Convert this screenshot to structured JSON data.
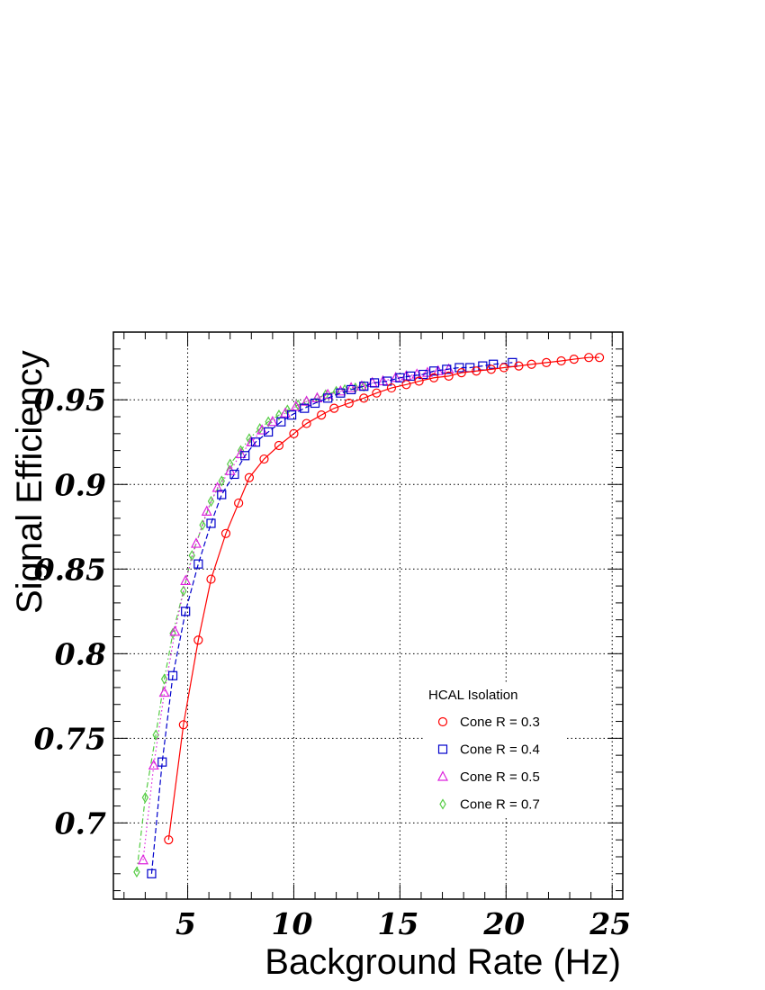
{
  "chart_data": {
    "type": "line",
    "xlabel": "Background Rate (Hz)",
    "ylabel": "Signal Efficiency",
    "xlim": [
      1.5,
      25.5
    ],
    "ylim": [
      0.655,
      0.99
    ],
    "xticks": [
      5,
      10,
      15,
      20,
      25
    ],
    "xtick_labels": [
      "5",
      "10",
      "15",
      "20",
      "25"
    ],
    "yticks": [
      0.7,
      0.75,
      0.8,
      0.85,
      0.9,
      0.95
    ],
    "ytick_labels": [
      "0.7",
      "0.75",
      "0.8",
      "0.85",
      "0.9",
      "0.95"
    ],
    "grid": true,
    "legend_title": "HCAL Isolation",
    "legend_position": "lower-right",
    "series": [
      {
        "name": "Cone R = 0.3",
        "color": "#ff0000",
        "marker": "circle",
        "line": "solid",
        "x": [
          4.1,
          4.8,
          5.5,
          6.1,
          6.8,
          7.4,
          7.9,
          8.6,
          9.3,
          10.0,
          10.6,
          11.3,
          11.9,
          12.6,
          13.3,
          13.9,
          14.6,
          15.3,
          15.9,
          16.6,
          17.3,
          17.9,
          18.6,
          19.3,
          19.9,
          20.6,
          21.2,
          21.9,
          22.6,
          23.2,
          23.9,
          24.4
        ],
        "y": [
          0.69,
          0.758,
          0.808,
          0.844,
          0.871,
          0.889,
          0.904,
          0.915,
          0.923,
          0.93,
          0.936,
          0.941,
          0.945,
          0.948,
          0.951,
          0.954,
          0.957,
          0.959,
          0.961,
          0.963,
          0.964,
          0.966,
          0.967,
          0.968,
          0.969,
          0.97,
          0.971,
          0.972,
          0.973,
          0.974,
          0.975,
          0.975
        ]
      },
      {
        "name": "Cone R = 0.4",
        "color": "#0000cc",
        "marker": "square",
        "line": "dashed",
        "x": [
          3.3,
          3.8,
          4.3,
          4.9,
          5.5,
          6.1,
          6.6,
          7.2,
          7.7,
          8.2,
          8.8,
          9.4,
          9.9,
          10.5,
          11.0,
          11.6,
          12.2,
          12.7,
          13.3,
          13.8,
          14.4,
          15.0,
          15.5,
          16.1,
          16.6,
          17.2,
          17.8,
          18.3,
          18.9,
          19.4,
          20.3
        ],
        "y": [
          0.67,
          0.736,
          0.787,
          0.825,
          0.853,
          0.877,
          0.894,
          0.906,
          0.917,
          0.925,
          0.931,
          0.937,
          0.941,
          0.945,
          0.948,
          0.951,
          0.954,
          0.956,
          0.958,
          0.96,
          0.961,
          0.963,
          0.964,
          0.965,
          0.967,
          0.968,
          0.969,
          0.969,
          0.97,
          0.971,
          0.972
        ]
      },
      {
        "name": "Cone R = 0.5",
        "color": "#dd22dd",
        "marker": "triangle",
        "line": "dotted",
        "x": [
          2.9,
          3.4,
          3.9,
          4.4,
          4.9,
          5.4,
          5.9,
          6.4,
          7.0,
          7.5,
          8.0,
          8.5,
          9.0,
          9.6,
          10.1,
          10.6,
          11.1,
          11.6,
          12.2,
          12.7,
          13.2,
          13.7,
          14.2,
          14.8,
          15.3,
          15.8,
          16.3,
          16.8,
          17.3
        ],
        "y": [
          0.678,
          0.734,
          0.777,
          0.813,
          0.843,
          0.865,
          0.884,
          0.898,
          0.908,
          0.918,
          0.925,
          0.932,
          0.937,
          0.942,
          0.946,
          0.949,
          0.951,
          0.953,
          0.955,
          0.957,
          0.958,
          0.96,
          0.961,
          0.963,
          0.964,
          0.965,
          0.966,
          0.967,
          0.968
        ]
      },
      {
        "name": "Cone R = 0.7",
        "color": "#55cc44",
        "marker": "diamond",
        "line": "dashdot",
        "x": [
          2.6,
          3.0,
          3.5,
          3.9,
          4.3,
          4.8,
          5.2,
          5.7,
          6.1,
          6.6,
          7.0,
          7.5,
          7.9,
          8.4,
          8.8,
          9.3,
          9.7,
          10.2,
          10.6,
          11.1,
          11.5,
          12.0,
          12.4,
          12.9,
          13.3
        ],
        "y": [
          0.671,
          0.715,
          0.752,
          0.785,
          0.812,
          0.837,
          0.858,
          0.876,
          0.89,
          0.902,
          0.912,
          0.92,
          0.927,
          0.933,
          0.937,
          0.941,
          0.944,
          0.947,
          0.949,
          0.951,
          0.953,
          0.955,
          0.956,
          0.957,
          0.958
        ]
      }
    ]
  }
}
